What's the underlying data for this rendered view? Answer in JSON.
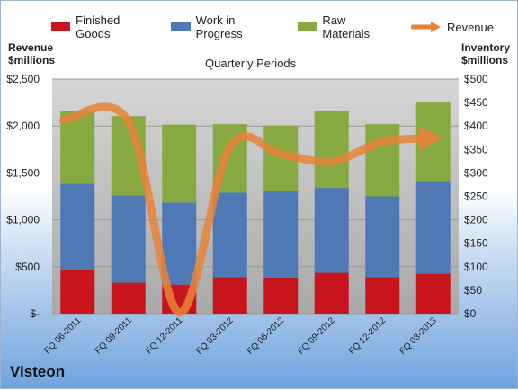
{
  "chart_data": {
    "type": "bar",
    "stacked": true,
    "categories": [
      "FQ 06-2011",
      "FQ 09-2011",
      "FQ 12-2011",
      "FQ 03-2012",
      "FQ 06-2012",
      "FQ 09-2012",
      "FQ 12-2012",
      "FQ 03-2013"
    ],
    "series": [
      {
        "name": "Finished Goods",
        "axis": "right",
        "color": "#c8141c",
        "values": [
          93,
          66,
          62,
          78,
          77,
          87,
          78,
          85
        ]
      },
      {
        "name": "Work in Progress",
        "axis": "right",
        "color": "#4f79b6",
        "values": [
          184,
          186,
          175,
          180,
          184,
          181,
          172,
          198
        ]
      },
      {
        "name": "Raw Materials",
        "axis": "right",
        "color": "#86a942",
        "values": [
          154,
          169,
          166,
          146,
          140,
          165,
          154,
          168
        ]
      },
      {
        "name": "Revenue",
        "type": "line",
        "axis": "left",
        "color": "#e8823a",
        "values": [
          2060,
          2050,
          10,
          1780,
          1700,
          1620,
          1830,
          1870
        ]
      }
    ],
    "plot_title": "Quarterly Periods",
    "ylabel_left": "Revenue\n$millions",
    "ylabel_right": "Inventory\n$millions",
    "ylim_left": [
      0,
      2500
    ],
    "ylim_right": [
      0,
      500
    ],
    "yticks_left": [
      "$-",
      "$500",
      "$1,000",
      "$1,500",
      "$2,000",
      "$2,500"
    ],
    "yticks_right": [
      "$0",
      "$50",
      "$100",
      "$150",
      "$200",
      "$250",
      "$300",
      "$350",
      "$400",
      "$450",
      "$500"
    ],
    "grid": true,
    "legend_position": "top"
  },
  "brand": "Visteon"
}
